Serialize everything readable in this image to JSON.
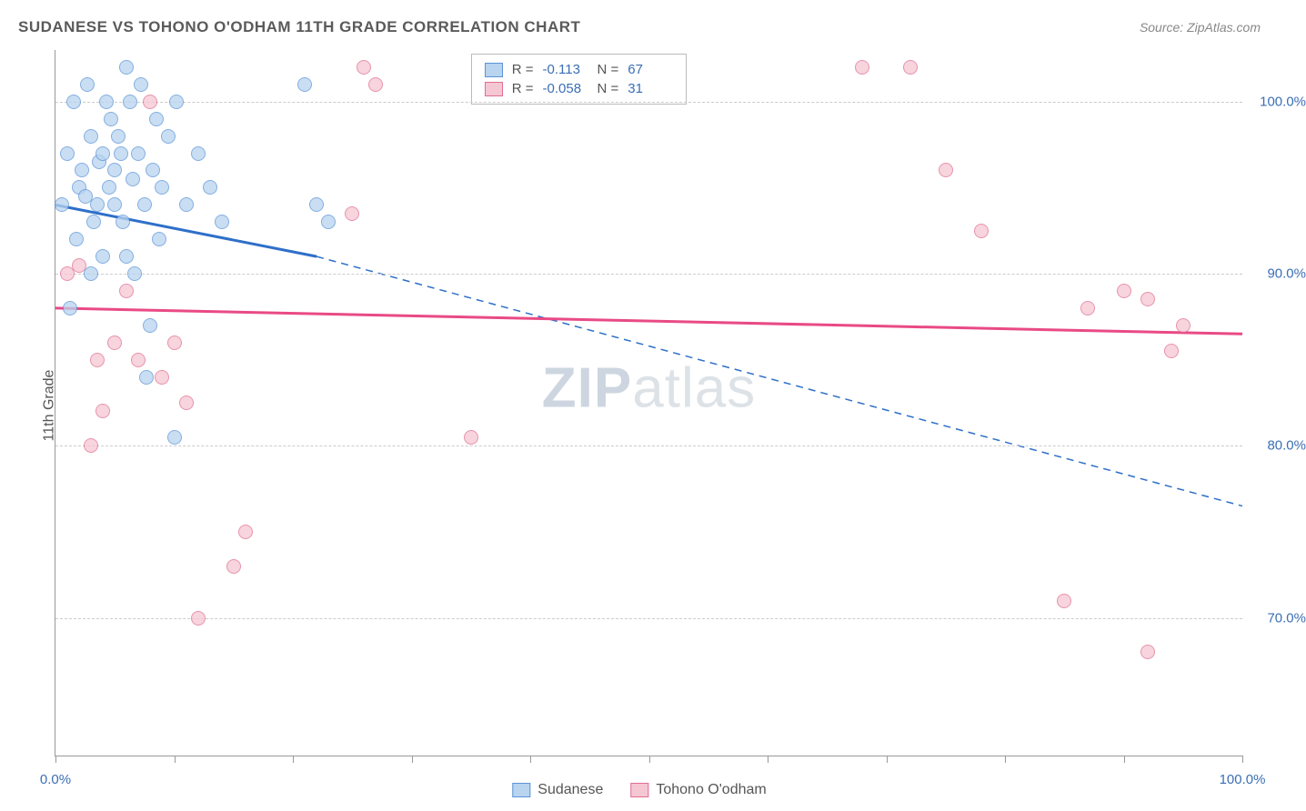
{
  "header": {
    "title": "SUDANESE VS TOHONO O'ODHAM 11TH GRADE CORRELATION CHART",
    "source": "Source: ZipAtlas.com"
  },
  "axes": {
    "ylabel": "11th Grade",
    "x_min": 0,
    "x_max": 100,
    "y_min": 62,
    "y_max": 103,
    "y_ticks": [
      70,
      80,
      90,
      100
    ],
    "y_tick_labels": [
      "70.0%",
      "80.0%",
      "90.0%",
      "100.0%"
    ],
    "x_ticks": [
      0,
      10,
      20,
      30,
      40,
      50,
      60,
      70,
      80,
      90,
      100
    ],
    "x_labels": [
      {
        "value": 0,
        "label": "0.0%"
      },
      {
        "value": 100,
        "label": "100.0%"
      }
    ],
    "grid_color": "#cccccc"
  },
  "series": [
    {
      "id": "sudanese",
      "label": "Sudanese",
      "fill": "#b8d4ef",
      "stroke": "#5b94d6",
      "R": "-0.113",
      "N": "67",
      "trend": {
        "solid": {
          "x1": 0,
          "y1": 94,
          "x2": 22,
          "y2": 91
        },
        "dashed": {
          "x1": 22,
          "y1": 91,
          "x2": 100,
          "y2": 76.5
        },
        "color": "#2e6fc9",
        "width": 3
      },
      "points": [
        [
          0.5,
          94
        ],
        [
          1,
          97
        ],
        [
          1.2,
          88
        ],
        [
          1.5,
          100
        ],
        [
          1.8,
          92
        ],
        [
          2,
          95
        ],
        [
          2.2,
          96
        ],
        [
          2.5,
          94.5
        ],
        [
          2.7,
          101
        ],
        [
          3,
          98
        ],
        [
          3,
          90
        ],
        [
          3.2,
          93
        ],
        [
          3.5,
          94
        ],
        [
          3.7,
          96.5
        ],
        [
          4,
          97
        ],
        [
          4,
          91
        ],
        [
          4.3,
          100
        ],
        [
          4.5,
          95
        ],
        [
          4.7,
          99
        ],
        [
          5,
          96
        ],
        [
          5,
          94
        ],
        [
          5.3,
          98
        ],
        [
          5.5,
          97
        ],
        [
          5.7,
          93
        ],
        [
          6,
          91
        ],
        [
          6,
          102
        ],
        [
          6.3,
          100
        ],
        [
          6.5,
          95.5
        ],
        [
          6.7,
          90
        ],
        [
          7,
          97
        ],
        [
          7.2,
          101
        ],
        [
          7.5,
          94
        ],
        [
          7.7,
          84
        ],
        [
          8,
          87
        ],
        [
          8.2,
          96
        ],
        [
          8.5,
          99
        ],
        [
          8.7,
          92
        ],
        [
          9,
          95
        ],
        [
          9.5,
          98
        ],
        [
          10,
          80.5
        ],
        [
          10.2,
          100
        ],
        [
          11,
          94
        ],
        [
          12,
          97
        ],
        [
          13,
          95
        ],
        [
          14,
          93
        ],
        [
          21,
          101
        ],
        [
          22,
          94
        ],
        [
          23,
          93
        ]
      ]
    },
    {
      "id": "tohono",
      "label": "Tohono O'odham",
      "fill": "#f5c6d3",
      "stroke": "#e16f8f",
      "R": "-0.058",
      "N": "31",
      "trend": {
        "solid": {
          "x1": 0,
          "y1": 88,
          "x2": 100,
          "y2": 86.5
        },
        "color": "#e94a85",
        "width": 3
      },
      "points": [
        [
          1,
          90
        ],
        [
          2,
          90.5
        ],
        [
          3,
          80
        ],
        [
          3.5,
          85
        ],
        [
          4,
          82
        ],
        [
          5,
          86
        ],
        [
          6,
          89
        ],
        [
          7,
          85
        ],
        [
          8,
          100
        ],
        [
          9,
          84
        ],
        [
          10,
          86
        ],
        [
          11,
          82.5
        ],
        [
          12,
          70
        ],
        [
          15,
          73
        ],
        [
          16,
          75
        ],
        [
          25,
          93.5
        ],
        [
          26,
          102
        ],
        [
          27,
          101
        ],
        [
          35,
          80.5
        ],
        [
          68,
          102
        ],
        [
          72,
          102
        ],
        [
          75,
          96
        ],
        [
          78,
          92.5
        ],
        [
          85,
          71
        ],
        [
          87,
          88
        ],
        [
          90,
          89
        ],
        [
          92,
          88.5
        ],
        [
          92,
          68
        ],
        [
          94,
          85.5
        ],
        [
          95,
          87
        ]
      ]
    }
  ],
  "stats_box": {
    "r_label": "R =",
    "n_label": "N ="
  },
  "watermark": {
    "zip": "ZIP",
    "atlas": "atlas"
  },
  "legend_items": [
    "Sudanese",
    "Tohono O'odham"
  ]
}
